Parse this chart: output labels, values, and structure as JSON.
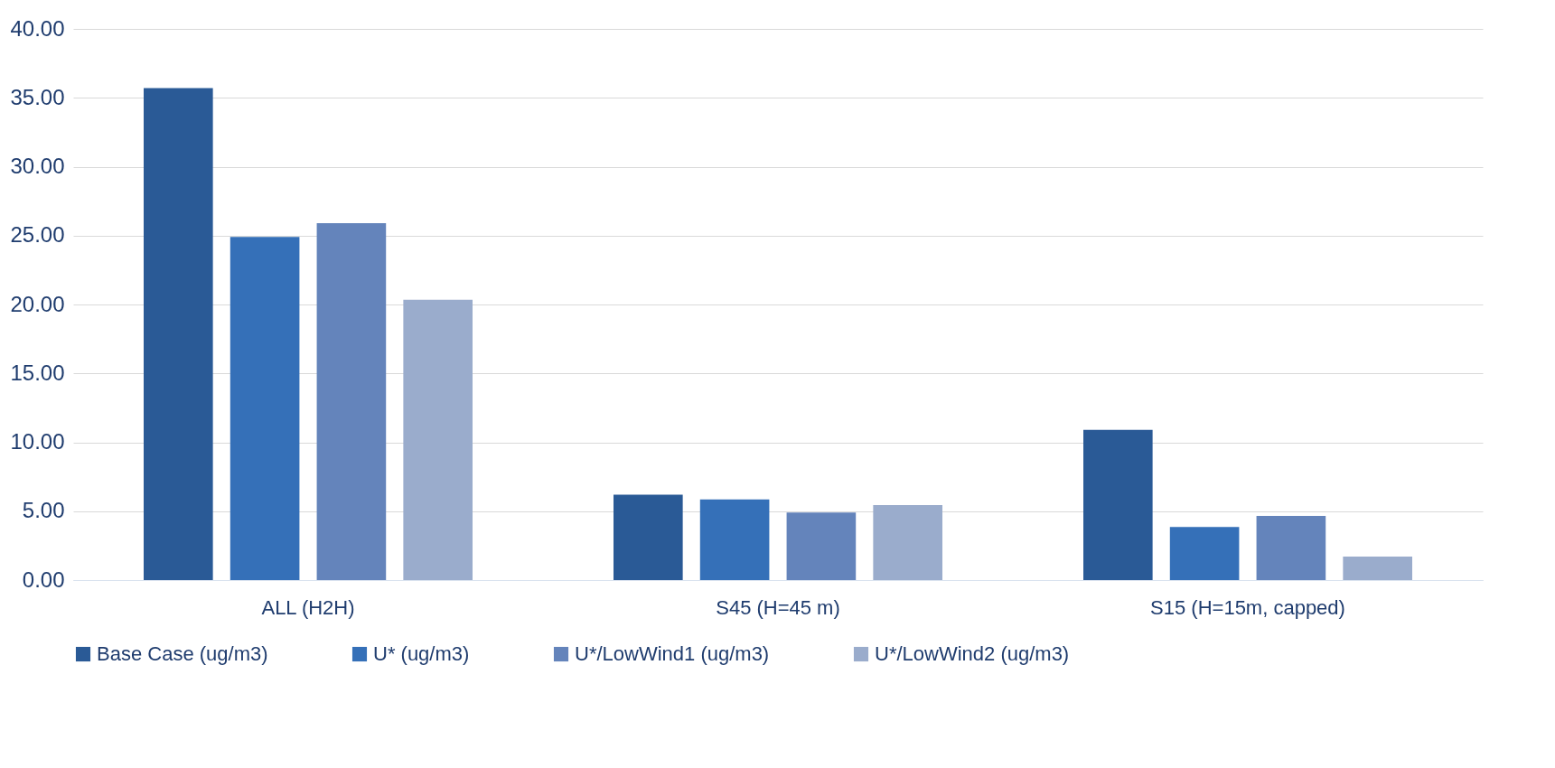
{
  "chart_data": {
    "type": "bar",
    "categories": [
      "ALL (H2H)",
      "S45 (H=45 m)",
      "S15 (H=15m, capped)"
    ],
    "series": [
      {
        "name": "Base Case (ug/m3)",
        "color": "#2a5a96",
        "values": [
          35.7,
          6.2,
          10.9
        ]
      },
      {
        "name": "U* (ug/m3)",
        "color": "#3570b8",
        "values": [
          24.9,
          5.85,
          3.85
        ]
      },
      {
        "name": "U*/LowWind1 (ug/m3)",
        "color": "#6484bb",
        "values": [
          25.9,
          4.9,
          4.65
        ]
      },
      {
        "name": "U*/LowWind2 (ug/m3)",
        "color": "#9aaccc",
        "values": [
          20.35,
          5.45,
          1.7
        ]
      }
    ],
    "ylim": [
      0,
      40
    ],
    "yticks": [
      {
        "value": 0,
        "label": "0.00"
      },
      {
        "value": 5,
        "label": "5.00"
      },
      {
        "value": 10,
        "label": "10.00"
      },
      {
        "value": 15,
        "label": "15.00"
      },
      {
        "value": 20,
        "label": "20.00"
      },
      {
        "value": 25,
        "label": "25.00"
      },
      {
        "value": 30,
        "label": "30.00"
      },
      {
        "value": 35,
        "label": "35.00"
      },
      {
        "value": 40,
        "label": "40.00"
      }
    ],
    "grid": "y",
    "legend": "bottom"
  }
}
